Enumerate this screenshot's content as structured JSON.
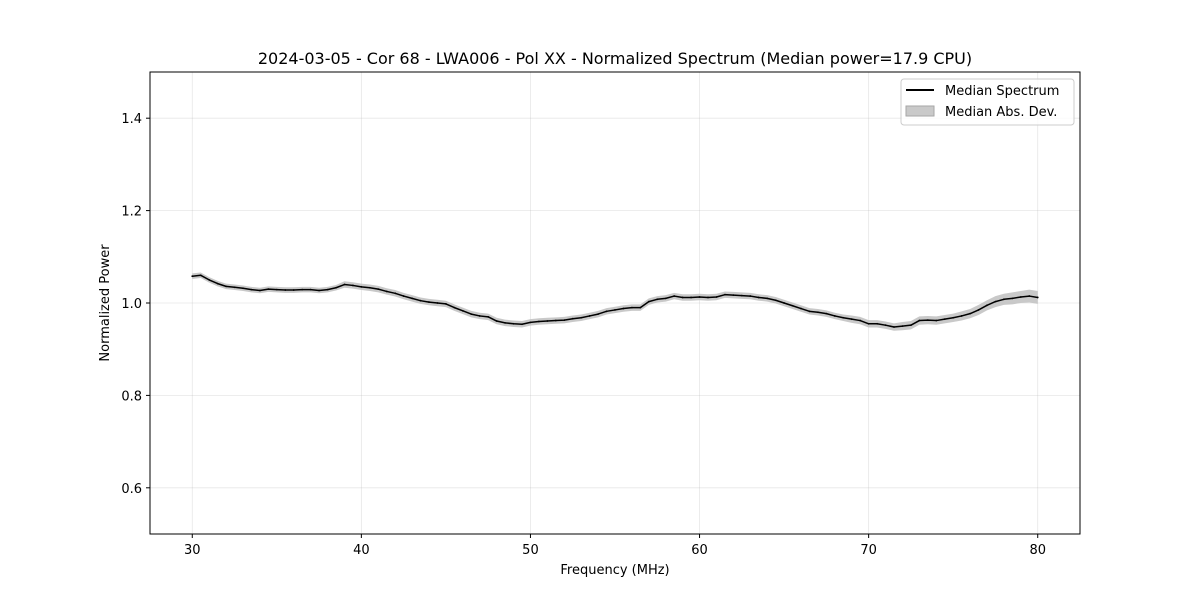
{
  "chart_data": {
    "type": "line",
    "title": "2024-03-05 - Cor 68 - LWA006 - Pol XX - Normalized Spectrum (Median power=17.9 CPU)",
    "xlabel": "Frequency (MHz)",
    "ylabel": "Normalized Power",
    "xlim": [
      27.5,
      82.5
    ],
    "ylim": [
      0.5,
      1.5
    ],
    "xticks": [
      30,
      40,
      50,
      60,
      70,
      80
    ],
    "yticks": [
      0.6,
      0.8,
      1.0,
      1.2,
      1.4
    ],
    "xtick_labels": [
      "30",
      "40",
      "50",
      "60",
      "70",
      "80"
    ],
    "ytick_labels": [
      "0.6",
      "0.8",
      "1.0",
      "1.2",
      "1.4"
    ],
    "grid": true,
    "legend": {
      "position": "top-right",
      "entries": [
        {
          "label": "Median Spectrum",
          "kind": "line",
          "color": "#000000"
        },
        {
          "label": "Median Abs. Dev.",
          "kind": "band",
          "color": "#bfbfbf"
        }
      ]
    },
    "series": [
      {
        "name": "Median Spectrum",
        "color": "#000000",
        "x": [
          30,
          30.5,
          31,
          31.5,
          32,
          32.5,
          33,
          33.5,
          34,
          34.5,
          35,
          35.5,
          36,
          36.5,
          37,
          37.5,
          38,
          38.5,
          39,
          39.5,
          40,
          40.5,
          41,
          41.5,
          42,
          42.5,
          43,
          43.5,
          44,
          44.5,
          45,
          45.5,
          46,
          46.5,
          47,
          47.5,
          48,
          48.5,
          49,
          49.5,
          50,
          50.5,
          51,
          51.5,
          52,
          52.5,
          53,
          53.5,
          54,
          54.5,
          55,
          55.5,
          56,
          56.5,
          57,
          57.5,
          58,
          58.5,
          59,
          59.5,
          60,
          60.5,
          61,
          61.5,
          62,
          62.5,
          63,
          63.5,
          64,
          64.5,
          65,
          65.5,
          66,
          66.5,
          67,
          67.5,
          68,
          68.5,
          69,
          69.5,
          70,
          70.5,
          71,
          71.5,
          72,
          72.5,
          73,
          73.5,
          74,
          74.5,
          75,
          75.5,
          76,
          76.5,
          77,
          77.5,
          78,
          78.5,
          79,
          79.5,
          80
        ],
        "values": [
          1.058,
          1.06,
          1.05,
          1.042,
          1.036,
          1.034,
          1.032,
          1.029,
          1.027,
          1.03,
          1.029,
          1.028,
          1.028,
          1.029,
          1.029,
          1.027,
          1.029,
          1.033,
          1.04,
          1.038,
          1.035,
          1.033,
          1.03,
          1.025,
          1.021,
          1.015,
          1.01,
          1.005,
          1.002,
          1.0,
          0.998,
          0.99,
          0.983,
          0.976,
          0.972,
          0.97,
          0.961,
          0.957,
          0.955,
          0.954,
          0.958,
          0.96,
          0.961,
          0.962,
          0.963,
          0.966,
          0.968,
          0.972,
          0.976,
          0.982,
          0.985,
          0.988,
          0.99,
          0.99,
          1.003,
          1.008,
          1.01,
          1.015,
          1.012,
          1.012,
          1.013,
          1.012,
          1.013,
          1.018,
          1.017,
          1.016,
          1.015,
          1.012,
          1.01,
          1.006,
          1.0,
          0.994,
          0.988,
          0.982,
          0.98,
          0.977,
          0.972,
          0.968,
          0.965,
          0.962,
          0.955,
          0.955,
          0.952,
          0.948,
          0.95,
          0.952,
          0.962,
          0.963,
          0.962,
          0.965,
          0.968,
          0.972,
          0.977,
          0.985,
          0.995,
          1.003,
          1.008,
          1.01,
          1.013,
          1.015,
          1.012
        ]
      }
    ],
    "band": {
      "name": "Median Abs. Dev.",
      "color": "#bfbfbf",
      "halfwidth": [
        0.006,
        0.006,
        0.006,
        0.006,
        0.006,
        0.006,
        0.006,
        0.006,
        0.006,
        0.006,
        0.006,
        0.006,
        0.006,
        0.006,
        0.006,
        0.006,
        0.006,
        0.006,
        0.007,
        0.007,
        0.007,
        0.007,
        0.007,
        0.007,
        0.007,
        0.007,
        0.007,
        0.007,
        0.007,
        0.007,
        0.007,
        0.007,
        0.007,
        0.007,
        0.007,
        0.007,
        0.007,
        0.007,
        0.007,
        0.007,
        0.007,
        0.007,
        0.007,
        0.007,
        0.007,
        0.007,
        0.007,
        0.007,
        0.007,
        0.007,
        0.007,
        0.007,
        0.007,
        0.007,
        0.007,
        0.007,
        0.007,
        0.007,
        0.007,
        0.007,
        0.007,
        0.007,
        0.007,
        0.007,
        0.007,
        0.007,
        0.007,
        0.007,
        0.007,
        0.007,
        0.007,
        0.007,
        0.007,
        0.007,
        0.007,
        0.007,
        0.007,
        0.007,
        0.008,
        0.008,
        0.008,
        0.008,
        0.008,
        0.008,
        0.009,
        0.009,
        0.009,
        0.009,
        0.009,
        0.009,
        0.009,
        0.01,
        0.01,
        0.011,
        0.011,
        0.012,
        0.012,
        0.013,
        0.013,
        0.014,
        0.014
      ]
    }
  }
}
